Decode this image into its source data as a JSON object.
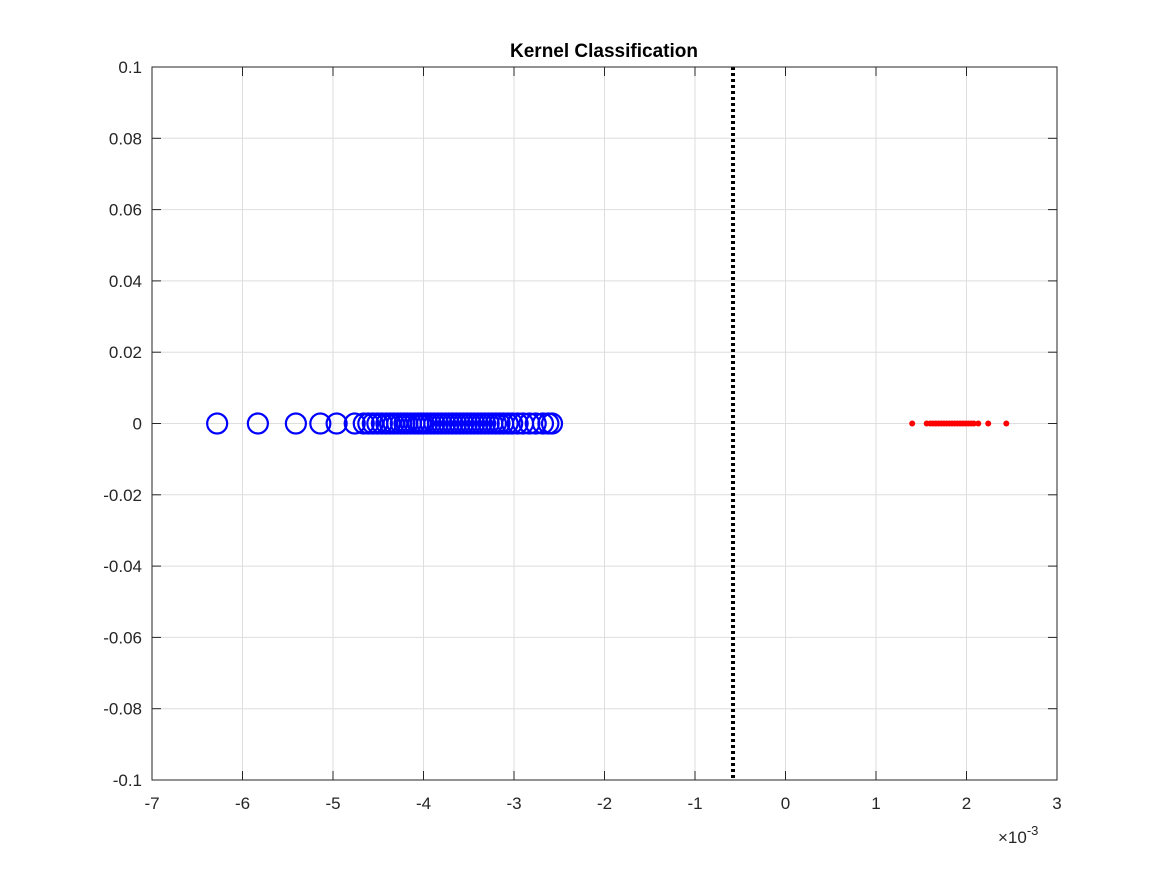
{
  "chart_data": {
    "type": "scatter",
    "title": "Kernel Classification",
    "xlabel": "",
    "ylabel": "",
    "xlim": [
      -0.007,
      0.003
    ],
    "ylim": [
      -0.1,
      0.1
    ],
    "x_exponent_label": "×10",
    "x_exponent_power": "-3",
    "grid": true,
    "legend": "none",
    "x_ticks": [
      -0.007,
      -0.006,
      -0.005,
      -0.004,
      -0.003,
      -0.002,
      -0.001,
      0,
      0.001,
      0.002,
      0.003
    ],
    "x_tick_labels": [
      "-7",
      "-6",
      "-5",
      "-4",
      "-3",
      "-2",
      "-1",
      "0",
      "1",
      "2",
      "3"
    ],
    "y_ticks": [
      0.1,
      0.08,
      0.06,
      0.04,
      0.02,
      0,
      -0.02,
      -0.04,
      -0.06,
      -0.08,
      -0.1
    ],
    "y_tick_labels": [
      "0.1",
      "0.08",
      "0.06",
      "0.04",
      "0.02",
      "0",
      "-0.02",
      "-0.04",
      "-0.06",
      "-0.08",
      "-0.1"
    ],
    "series": [
      {
        "marker": "open-circle",
        "color": "#0000ff",
        "x": [
          -0.00628,
          -0.00583,
          -0.00541,
          -0.00514,
          -0.00496,
          -0.00476,
          -0.00466,
          -0.00461,
          -0.00456,
          -0.00451,
          -0.00446,
          -0.00441,
          -0.00437,
          -0.00433,
          -0.00429,
          -0.00425,
          -0.00421,
          -0.00418,
          -0.00414,
          -0.0041,
          -0.00406,
          -0.00403,
          -0.004,
          -0.00396,
          -0.00392,
          -0.00388,
          -0.00384,
          -0.0038,
          -0.00376,
          -0.00372,
          -0.00368,
          -0.00364,
          -0.0036,
          -0.00356,
          -0.00352,
          -0.00348,
          -0.00344,
          -0.0034,
          -0.00336,
          -0.00332,
          -0.00328,
          -0.00324,
          -0.0032,
          -0.00316,
          -0.00312,
          -0.00307,
          -0.00302,
          -0.00296,
          -0.0029,
          -0.00283,
          -0.00276,
          -0.00268,
          -0.00262,
          -0.00258
        ],
        "y": [
          0,
          0,
          0,
          0,
          0,
          0,
          0,
          0,
          0,
          0,
          0,
          0,
          0,
          0,
          0,
          0,
          0,
          0,
          0,
          0,
          0,
          0,
          0,
          0,
          0,
          0,
          0,
          0,
          0,
          0,
          0,
          0,
          0,
          0,
          0,
          0,
          0,
          0,
          0,
          0,
          0,
          0,
          0,
          0,
          0,
          0,
          0,
          0,
          0,
          0,
          0,
          0,
          0,
          0
        ]
      },
      {
        "marker": "dot",
        "color": "#ff0000",
        "x": [
          0.0014,
          0.00156,
          0.0016,
          0.00163,
          0.00166,
          0.00169,
          0.00172,
          0.00175,
          0.00178,
          0.00181,
          0.00184,
          0.00187,
          0.0019,
          0.00193,
          0.00196,
          0.00199,
          0.00202,
          0.00205,
          0.00208,
          0.00213,
          0.00224,
          0.00244
        ],
        "y": [
          0,
          0,
          0,
          0,
          0,
          0,
          0,
          0,
          0,
          0,
          0,
          0,
          0,
          0,
          0,
          0,
          0,
          0,
          0,
          0,
          0,
          0
        ]
      }
    ],
    "reference_line": {
      "orientation": "vertical",
      "x": -0.00058,
      "style": "dotted",
      "color": "#000000"
    }
  }
}
